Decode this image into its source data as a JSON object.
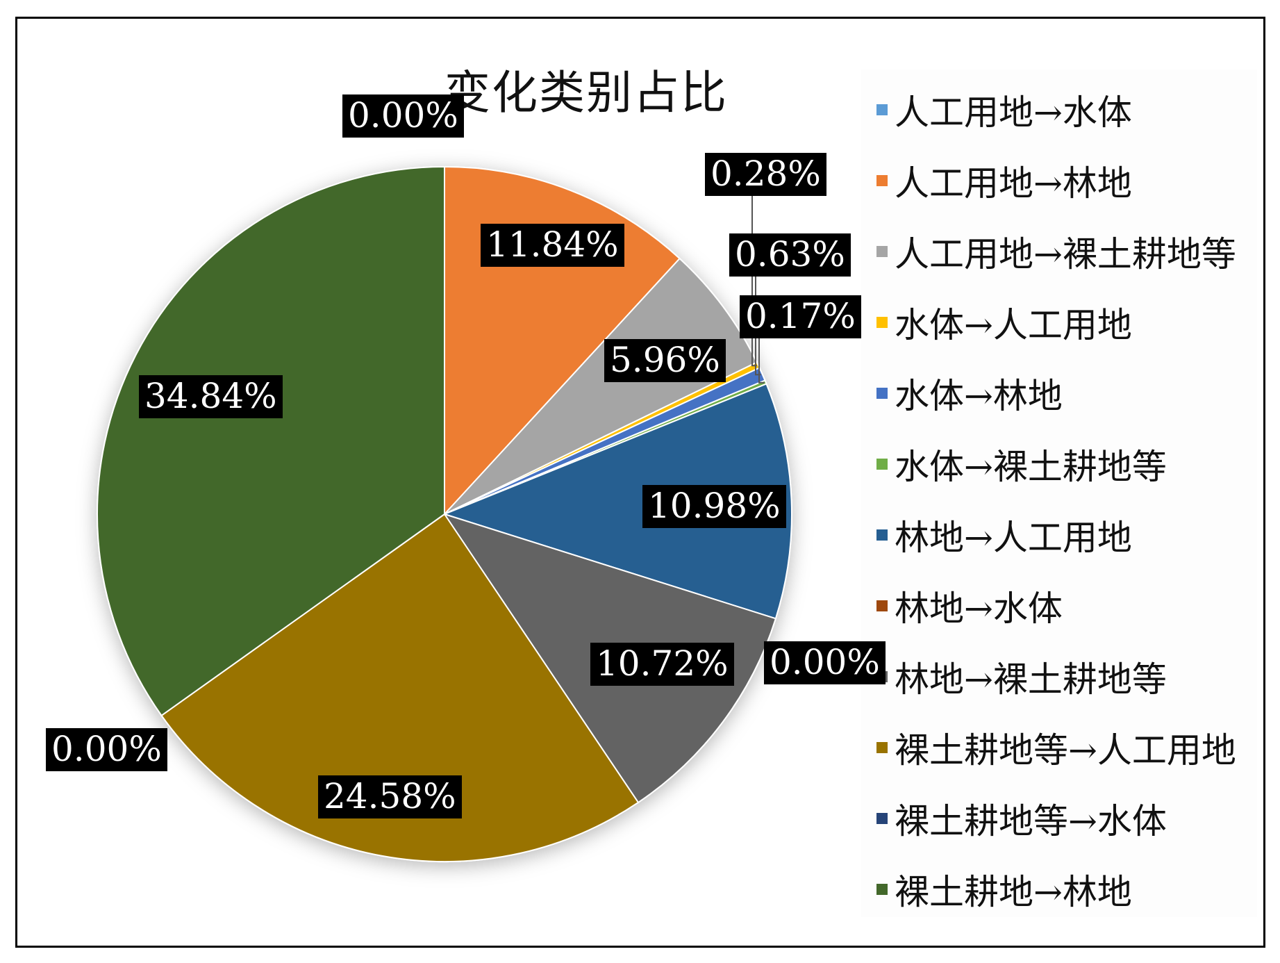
{
  "chart_data": {
    "type": "pie",
    "title": "变化类别占比",
    "categories": [
      "人工用地→水体",
      "人工用地→林地",
      "人工用地→裸土耕地等",
      "水体→人工用地",
      "水体→林地",
      "水体→裸土耕地等",
      "林地→人工用地",
      "林地→水体",
      "林地→裸土耕地等",
      "裸土耕地等→人工用地",
      "裸土耕地等→水体",
      "裸土耕地→林地"
    ],
    "values": [
      0.0,
      11.84,
      5.96,
      0.28,
      0.63,
      0.17,
      10.98,
      0.0,
      10.72,
      24.58,
      0.0,
      34.84
    ],
    "data_labels": [
      "0.00%",
      "11.84%",
      "5.96%",
      "0.28%",
      "0.63%",
      "0.17%",
      "10.98%",
      "0.00%",
      "10.72%",
      "24.58%",
      "0.00%",
      "34.84%"
    ],
    "colors": [
      "#5b9bd5",
      "#ed7d31",
      "#a5a5a5",
      "#ffc000",
      "#4472c4",
      "#70ad47",
      "#255e91",
      "#9e480e",
      "#636363",
      "#997300",
      "#264478",
      "#43682b"
    ],
    "legend_position": "right"
  }
}
